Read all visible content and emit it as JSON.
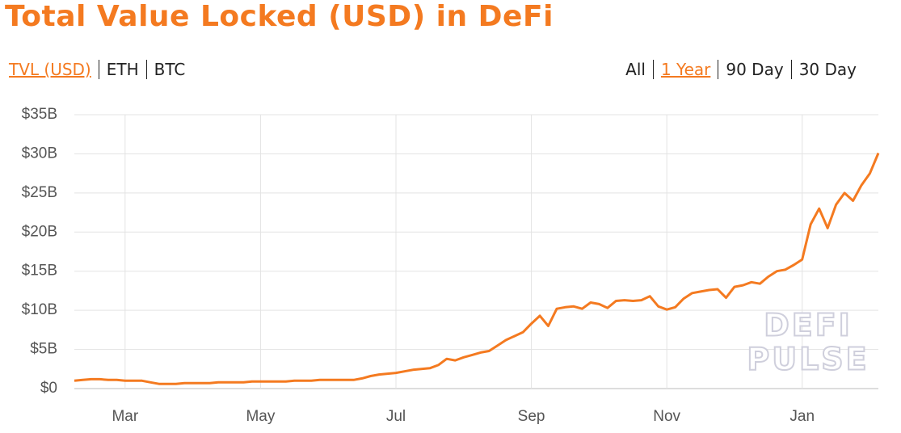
{
  "chart_data": {
    "type": "line",
    "title": "Total Value Locked (USD) in DeFi",
    "tabs": [
      "TVL (USD)",
      "ETH",
      "BTC"
    ],
    "active_tab": 0,
    "ranges": [
      "All",
      "1 Year",
      "90 Day",
      "30 Day"
    ],
    "active_range": 1,
    "watermark": [
      "DEFI",
      "PULSE"
    ],
    "categories": [
      null,
      null,
      null,
      null,
      null,
      null,
      "Mar",
      null,
      null,
      null,
      null,
      null,
      null,
      null,
      null,
      null,
      null,
      null,
      null,
      null,
      null,
      null,
      "May",
      null,
      null,
      null,
      null,
      null,
      null,
      null,
      null,
      null,
      null,
      null,
      null,
      null,
      null,
      null,
      "Jul",
      null,
      null,
      null,
      null,
      null,
      null,
      null,
      null,
      null,
      null,
      null,
      null,
      null,
      null,
      null,
      "Sep",
      null,
      null,
      null,
      null,
      null,
      null,
      null,
      null,
      null,
      null,
      null,
      null,
      null,
      null,
      null,
      "Nov",
      null,
      null,
      null,
      null,
      null,
      null,
      null,
      null,
      null,
      null,
      null,
      null,
      null,
      null,
      null,
      "Jan",
      null,
      null,
      null,
      null,
      null,
      null,
      null,
      null,
      null
    ],
    "series": [
      {
        "name": "TVL (USD)",
        "color": "#f47a20",
        "values": [
          1.0,
          1.1,
          1.2,
          1.2,
          1.1,
          1.1,
          1.0,
          1.0,
          1.0,
          0.8,
          0.6,
          0.6,
          0.6,
          0.7,
          0.7,
          0.7,
          0.7,
          0.8,
          0.8,
          0.8,
          0.8,
          0.9,
          0.9,
          0.9,
          0.9,
          0.9,
          1.0,
          1.0,
          1.0,
          1.1,
          1.1,
          1.1,
          1.1,
          1.1,
          1.3,
          1.6,
          1.8,
          1.9,
          2.0,
          2.2,
          2.4,
          2.5,
          2.6,
          3.0,
          3.8,
          3.6,
          4.0,
          4.3,
          4.6,
          4.8,
          5.5,
          6.2,
          6.7,
          7.2,
          8.3,
          9.3,
          8.0,
          10.2,
          10.4,
          10.5,
          10.2,
          11.0,
          10.8,
          10.3,
          11.2,
          11.3,
          11.2,
          11.3,
          11.8,
          10.5,
          10.1,
          10.4,
          11.5,
          12.2,
          12.4,
          12.6,
          12.7,
          11.6,
          13.0,
          13.2,
          13.6,
          13.4,
          14.3,
          15.0,
          15.2,
          15.8,
          16.5,
          21.0,
          23.0,
          20.5,
          23.5,
          25.0,
          24.0,
          26.0,
          27.5,
          30.1
        ]
      }
    ],
    "ylim": [
      0,
      35
    ],
    "yticks": [
      {
        "value": 0,
        "label": "$0"
      },
      {
        "value": 5,
        "label": "$5B"
      },
      {
        "value": 10,
        "label": "$10B"
      },
      {
        "value": 15,
        "label": "$15B"
      },
      {
        "value": 20,
        "label": "$20B"
      },
      {
        "value": 25,
        "label": "$25B"
      },
      {
        "value": 30,
        "label": "$30B"
      },
      {
        "value": 35,
        "label": "$35B"
      }
    ],
    "grid": true
  }
}
